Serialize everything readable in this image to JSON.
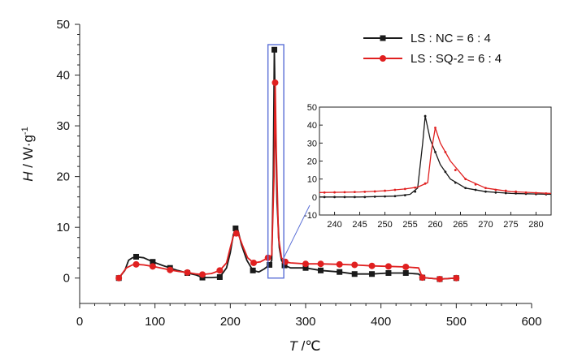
{
  "chart_data": [
    {
      "id": "main",
      "type": "line",
      "xlabel": {
        "var": "T",
        "unit": " /℃"
      },
      "ylabel": {
        "var": "H",
        "unit": " / W·g",
        "sup": "-1"
      },
      "xlim": [
        0,
        600
      ],
      "ylim": [
        -5,
        50
      ],
      "xticks": [
        0,
        100,
        200,
        300,
        400,
        500,
        600
      ],
      "yticks": [
        0,
        10,
        20,
        30,
        40,
        50
      ],
      "legend_position": "top-right",
      "series": [
        {
          "name": "LS : NC = 6 : 4",
          "color": "#1a1a1a",
          "marker": "square",
          "x": [
            52,
            60,
            65,
            70,
            75,
            85,
            97,
            110,
            120,
            130,
            143,
            155,
            163,
            175,
            186,
            195,
            200,
            204,
            207,
            210,
            215,
            222,
            230,
            238,
            245,
            252,
            255,
            257,
            258.5,
            260,
            262,
            265,
            268,
            272,
            280,
            300,
            320,
            345,
            365,
            388,
            410,
            433,
            450,
            455,
            478,
            500
          ],
          "y": [
            0,
            1.5,
            3.5,
            4.0,
            4.2,
            4.0,
            3.2,
            2.5,
            2.0,
            1.5,
            1.0,
            0.6,
            0.1,
            0.1,
            0.2,
            2.0,
            5.0,
            8.5,
            9.8,
            9.5,
            6.5,
            3.5,
            1.5,
            1.2,
            1.8,
            2.6,
            3.5,
            20,
            45,
            30,
            15,
            6,
            3.5,
            2.5,
            2.0,
            2.0,
            1.5,
            1.2,
            0.8,
            0.8,
            1.0,
            1.0,
            0.8,
            0.1,
            -0.2,
            0.0
          ],
          "markers_x": [
            52,
            75,
            97,
            120,
            143,
            163,
            186,
            207,
            230,
            252,
            258.5,
            272,
            300,
            320,
            345,
            365,
            388,
            410,
            433,
            455,
            478,
            500
          ],
          "markers_y": [
            0,
            4.2,
            3.2,
            2.0,
            1.0,
            0.1,
            0.2,
            9.8,
            1.5,
            2.6,
            45,
            2.5,
            2.0,
            1.5,
            1.2,
            0.8,
            0.8,
            1.0,
            1.0,
            0.1,
            -0.2,
            0.0
          ]
        },
        {
          "name": "LS : SQ-2 = 6 : 4",
          "color": "#e02020",
          "marker": "circle",
          "x": [
            52,
            62,
            70,
            75,
            85,
            97,
            110,
            120,
            132,
            143,
            155,
            163,
            175,
            186,
            195,
            200,
            204,
            208,
            211,
            216,
            223,
            231,
            240,
            250,
            255,
            258,
            259.5,
            261,
            264,
            268,
            273,
            280,
            300,
            320,
            345,
            365,
            388,
            410,
            433,
            450,
            455,
            478,
            500
          ],
          "y": [
            0,
            2.0,
            2.6,
            2.7,
            2.6,
            2.3,
            1.9,
            1.6,
            1.3,
            1.1,
            0.8,
            0.7,
            0.9,
            1.5,
            3.0,
            6.0,
            8.2,
            8.8,
            8.5,
            6.5,
            4.0,
            3.0,
            3.2,
            4.0,
            4.5,
            20,
            38.5,
            25,
            8,
            4.0,
            3.2,
            3.0,
            2.8,
            2.8,
            2.7,
            2.6,
            2.4,
            2.3,
            2.2,
            2.0,
            0.1,
            -0.2,
            0.0
          ],
          "markers_x": [
            52,
            75,
            97,
            120,
            143,
            163,
            186,
            208,
            231,
            250,
            259.5,
            273,
            300,
            320,
            345,
            365,
            388,
            410,
            433,
            455,
            478,
            500
          ],
          "markers_y": [
            0,
            2.7,
            2.3,
            1.6,
            1.1,
            0.7,
            1.5,
            8.8,
            3.0,
            4.0,
            38.5,
            3.2,
            2.8,
            2.8,
            2.7,
            2.6,
            2.4,
            2.3,
            2.2,
            0.1,
            -0.2,
            0.0
          ]
        }
      ],
      "highlight_box": {
        "x": [
          250,
          271
        ],
        "y": [
          0,
          46
        ]
      }
    },
    {
      "id": "inset",
      "type": "line",
      "xlim": [
        237,
        283
      ],
      "ylim": [
        -10,
        50
      ],
      "xticks": [
        240,
        245,
        250,
        255,
        260,
        265,
        270,
        275,
        280
      ],
      "yticks": [
        -10,
        0,
        10,
        20,
        30,
        40,
        50
      ],
      "series": [
        {
          "name": "LS : NC = 6 : 4",
          "color": "#1a1a1a",
          "x": [
            237,
            245,
            252,
            255,
            256.5,
            257.5,
            258,
            259,
            261,
            263,
            266,
            270,
            275,
            283
          ],
          "y": [
            0,
            0,
            0.5,
            1.5,
            5,
            30,
            45,
            32,
            18,
            10,
            5,
            3,
            2,
            1.5
          ],
          "markers_x": [
            238,
            240,
            242,
            244,
            246,
            248,
            250,
            252,
            254,
            256,
            258,
            260,
            262,
            264,
            266,
            268,
            270,
            272,
            274,
            276,
            278,
            280,
            282
          ],
          "markers_y": [
            0,
            0,
            0,
            0,
            0,
            0.2,
            0.3,
            0.5,
            1.0,
            3.0,
            45,
            25,
            14,
            8,
            5,
            4,
            3,
            2.5,
            2.2,
            2,
            1.8,
            1.6,
            1.5
          ]
        },
        {
          "name": "LS : SQ-2 = 6 : 4",
          "color": "#e02020",
          "x": [
            237,
            245,
            250,
            254,
            256.5,
            258.5,
            259.2,
            260,
            261,
            263,
            266,
            270,
            275,
            283
          ],
          "y": [
            2.5,
            2.8,
            3.5,
            4.5,
            5.5,
            8,
            25,
            38.5,
            30,
            20,
            10,
            5,
            3,
            2
          ],
          "markers_x": [
            238,
            240,
            242,
            244,
            246,
            248,
            250,
            252,
            254,
            256,
            258,
            260,
            262,
            264,
            266,
            268,
            270,
            272,
            274,
            276,
            278,
            280,
            282
          ],
          "markers_y": [
            2.5,
            2.6,
            2.7,
            2.8,
            2.9,
            3.1,
            3.5,
            4.0,
            4.5,
            5.2,
            7.5,
            38.5,
            25,
            15,
            10,
            7,
            5,
            4,
            3.5,
            3,
            2.5,
            2.2,
            2
          ]
        }
      ]
    }
  ]
}
